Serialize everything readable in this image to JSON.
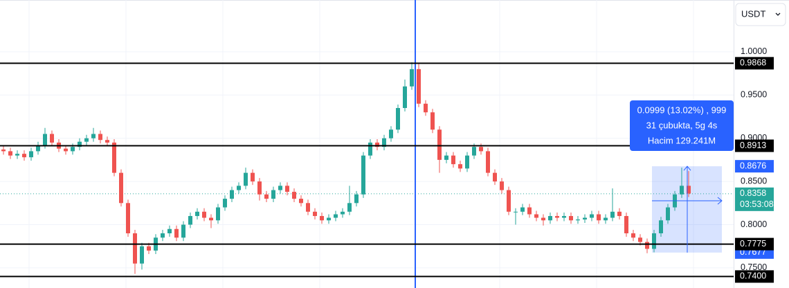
{
  "chart_data": {
    "type": "candlestick",
    "currency": "USDT",
    "ylim": [
      0.7267,
      1.06
    ],
    "yticks": [
      {
        "value": 1.0,
        "label": "1.0000"
      },
      {
        "value": 0.95,
        "label": "0.9500"
      },
      {
        "value": 0.9,
        "label": "0.9000"
      },
      {
        "value": 0.85,
        "label": "0.8500"
      },
      {
        "value": 0.8,
        "label": "0.8000"
      },
      {
        "value": 0.75,
        "label": "0.7500"
      }
    ],
    "grid": true,
    "up_color": "#26a69a",
    "down_color": "#ef5350",
    "levels": [
      0.9868,
      0.8913,
      0.7775,
      {
        "value": 0.74,
        "label": "0.7400"
      }
    ],
    "current_price": 0.8358,
    "countdown": "03:53:08",
    "measure": {
      "top": 0.8676,
      "bottom": 0.7677,
      "tooltip": [
        "0.0999 (13.02%) , 999",
        "31 çubukta, 5g 4s",
        "Hacim 129.241M"
      ]
    },
    "candles": [
      [
        0.887,
        0.891,
        0.881,
        0.885
      ],
      [
        0.885,
        0.889,
        0.876,
        0.88
      ],
      [
        0.88,
        0.886,
        0.876,
        0.882
      ],
      [
        0.882,
        0.886,
        0.874,
        0.878
      ],
      [
        0.878,
        0.889,
        0.874,
        0.885
      ],
      [
        0.885,
        0.896,
        0.881,
        0.892
      ],
      [
        0.892,
        0.912,
        0.888,
        0.905
      ],
      [
        0.905,
        0.909,
        0.891,
        0.895
      ],
      [
        0.895,
        0.899,
        0.884,
        0.888
      ],
      [
        0.888,
        0.892,
        0.881,
        0.885
      ],
      [
        0.885,
        0.894,
        0.881,
        0.89
      ],
      [
        0.89,
        0.9,
        0.886,
        0.896
      ],
      [
        0.896,
        0.904,
        0.892,
        0.9
      ],
      [
        0.9,
        0.912,
        0.896,
        0.905
      ],
      [
        0.905,
        0.909,
        0.894,
        0.898
      ],
      [
        0.898,
        0.902,
        0.891,
        0.895
      ],
      [
        0.895,
        0.899,
        0.856,
        0.86
      ],
      [
        0.86,
        0.864,
        0.821,
        0.825
      ],
      [
        0.825,
        0.829,
        0.786,
        0.79
      ],
      [
        0.79,
        0.794,
        0.743,
        0.755
      ],
      [
        0.755,
        0.779,
        0.748,
        0.775
      ],
      [
        0.775,
        0.779,
        0.766,
        0.77
      ],
      [
        0.77,
        0.789,
        0.766,
        0.785
      ],
      [
        0.785,
        0.794,
        0.781,
        0.79
      ],
      [
        0.79,
        0.799,
        0.786,
        0.795
      ],
      [
        0.795,
        0.799,
        0.781,
        0.785
      ],
      [
        0.785,
        0.804,
        0.781,
        0.8
      ],
      [
        0.8,
        0.814,
        0.796,
        0.81
      ],
      [
        0.81,
        0.819,
        0.806,
        0.815
      ],
      [
        0.815,
        0.819,
        0.804,
        0.808
      ],
      [
        0.808,
        0.812,
        0.796,
        0.805
      ],
      [
        0.805,
        0.824,
        0.801,
        0.82
      ],
      [
        0.82,
        0.834,
        0.816,
        0.83
      ],
      [
        0.83,
        0.844,
        0.826,
        0.84
      ],
      [
        0.84,
        0.849,
        0.836,
        0.845
      ],
      [
        0.845,
        0.866,
        0.841,
        0.86
      ],
      [
        0.86,
        0.864,
        0.846,
        0.85
      ],
      [
        0.85,
        0.854,
        0.828,
        0.835
      ],
      [
        0.835,
        0.839,
        0.826,
        0.83
      ],
      [
        0.83,
        0.844,
        0.826,
        0.84
      ],
      [
        0.84,
        0.849,
        0.836,
        0.845
      ],
      [
        0.845,
        0.849,
        0.834,
        0.838
      ],
      [
        0.838,
        0.842,
        0.826,
        0.83
      ],
      [
        0.83,
        0.834,
        0.821,
        0.825
      ],
      [
        0.825,
        0.829,
        0.811,
        0.815
      ],
      [
        0.815,
        0.819,
        0.806,
        0.81
      ],
      [
        0.81,
        0.814,
        0.801,
        0.805
      ],
      [
        0.805,
        0.812,
        0.801,
        0.808
      ],
      [
        0.808,
        0.816,
        0.804,
        0.812
      ],
      [
        0.812,
        0.819,
        0.808,
        0.815
      ],
      [
        0.815,
        0.845,
        0.811,
        0.825
      ],
      [
        0.825,
        0.839,
        0.821,
        0.835
      ],
      [
        0.835,
        0.884,
        0.831,
        0.88
      ],
      [
        0.88,
        0.899,
        0.876,
        0.895
      ],
      [
        0.895,
        0.899,
        0.886,
        0.89
      ],
      [
        0.89,
        0.904,
        0.886,
        0.9
      ],
      [
        0.9,
        0.914,
        0.896,
        0.91
      ],
      [
        0.91,
        0.939,
        0.906,
        0.935
      ],
      [
        0.935,
        0.968,
        0.931,
        0.96
      ],
      [
        0.96,
        0.988,
        0.956,
        0.98
      ],
      [
        0.98,
        0.986,
        0.936,
        0.94
      ],
      [
        0.94,
        0.944,
        0.926,
        0.93
      ],
      [
        0.93,
        0.934,
        0.906,
        0.91
      ],
      [
        0.91,
        0.914,
        0.86,
        0.875
      ],
      [
        0.875,
        0.884,
        0.871,
        0.88
      ],
      [
        0.88,
        0.884,
        0.866,
        0.87
      ],
      [
        0.87,
        0.874,
        0.861,
        0.865
      ],
      [
        0.865,
        0.884,
        0.861,
        0.88
      ],
      [
        0.88,
        0.894,
        0.876,
        0.89
      ],
      [
        0.89,
        0.894,
        0.881,
        0.885
      ],
      [
        0.885,
        0.889,
        0.856,
        0.86
      ],
      [
        0.86,
        0.864,
        0.846,
        0.85
      ],
      [
        0.85,
        0.854,
        0.836,
        0.84
      ],
      [
        0.84,
        0.844,
        0.811,
        0.815
      ],
      [
        0.815,
        0.819,
        0.8,
        0.815
      ],
      [
        0.815,
        0.824,
        0.811,
        0.82
      ],
      [
        0.82,
        0.824,
        0.808,
        0.812
      ],
      [
        0.812,
        0.816,
        0.804,
        0.808
      ],
      [
        0.808,
        0.812,
        0.799,
        0.805
      ],
      [
        0.805,
        0.814,
        0.801,
        0.81
      ],
      [
        0.81,
        0.814,
        0.804,
        0.808
      ],
      [
        0.808,
        0.814,
        0.804,
        0.81
      ],
      [
        0.81,
        0.814,
        0.801,
        0.805
      ],
      [
        0.805,
        0.81,
        0.801,
        0.806
      ],
      [
        0.806,
        0.812,
        0.802,
        0.808
      ],
      [
        0.808,
        0.816,
        0.804,
        0.812
      ],
      [
        0.812,
        0.816,
        0.801,
        0.805
      ],
      [
        0.805,
        0.812,
        0.801,
        0.808
      ],
      [
        0.808,
        0.842,
        0.804,
        0.815
      ],
      [
        0.815,
        0.819,
        0.806,
        0.81
      ],
      [
        0.81,
        0.814,
        0.786,
        0.79
      ],
      [
        0.79,
        0.794,
        0.781,
        0.785
      ],
      [
        0.785,
        0.789,
        0.776,
        0.78
      ],
      [
        0.78,
        0.784,
        0.767,
        0.772
      ],
      [
        0.772,
        0.794,
        0.768,
        0.79
      ],
      [
        0.79,
        0.809,
        0.786,
        0.805
      ],
      [
        0.805,
        0.824,
        0.801,
        0.82
      ],
      [
        0.82,
        0.839,
        0.816,
        0.835
      ],
      [
        0.835,
        0.866,
        0.831,
        0.845
      ],
      [
        0.845,
        0.862,
        0.832,
        0.836
      ]
    ]
  }
}
